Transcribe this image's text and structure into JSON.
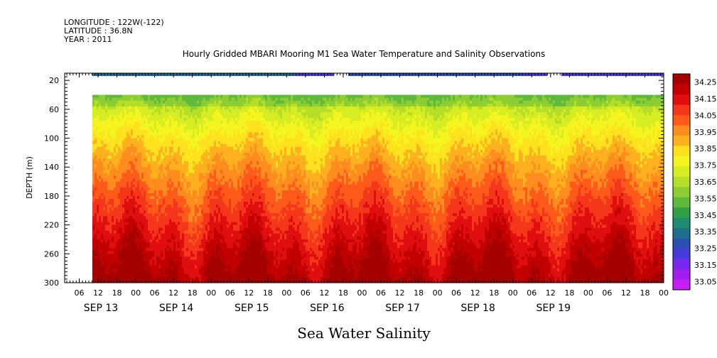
{
  "header": {
    "longitude": "LONGITUDE : 122W(-122)",
    "latitude": "LATITUDE : 36.8N",
    "year": "YEAR : 2011"
  },
  "chart_data": {
    "type": "heatmap",
    "title": "Hourly Gridded MBARI Mooring M1 Sea Water Temperature and Salinity Observations",
    "ylabel": "DEPTH (m)",
    "footer": "Sea Water Salinity",
    "y_ticks": [
      20,
      60,
      100,
      140,
      180,
      220,
      260,
      300
    ],
    "ylim": [
      300,
      10
    ],
    "x_hour_ticks": [
      "06",
      "12",
      "18",
      "00",
      "06",
      "12",
      "18",
      "00",
      "06",
      "12",
      "18",
      "00",
      "06",
      "12",
      "18",
      "00",
      "06",
      "12",
      "18",
      "00",
      "06",
      "12",
      "18",
      "00",
      "06",
      "12",
      "18",
      "00",
      "06",
      "12",
      "18",
      "00"
    ],
    "x_day_labels": [
      "SEP 13",
      "SEP 14",
      "SEP 15",
      "SEP 16",
      "SEP 17",
      "SEP 18",
      "SEP 19"
    ],
    "colorbar": {
      "levels": [
        "34.25",
        "34.15",
        "34.05",
        "33.95",
        "33.85",
        "33.75",
        "33.65",
        "33.55",
        "33.45",
        "33.35",
        "33.25",
        "33.15",
        "33.05"
      ],
      "colors": [
        "#a50000",
        "#c30000",
        "#e00e0e",
        "#f4361a",
        "#ff5a1a",
        "#ff8c1e",
        "#ffb01e",
        "#ffe21e",
        "#f4f41e",
        "#d6ec23",
        "#b4de28",
        "#8ccd32",
        "#5fb93c",
        "#32a046",
        "#1e8c6e",
        "#1e6e8c",
        "#2d50b4",
        "#463cdc",
        "#7828f0",
        "#a01ef0",
        "#c81ef5"
      ]
    }
  }
}
